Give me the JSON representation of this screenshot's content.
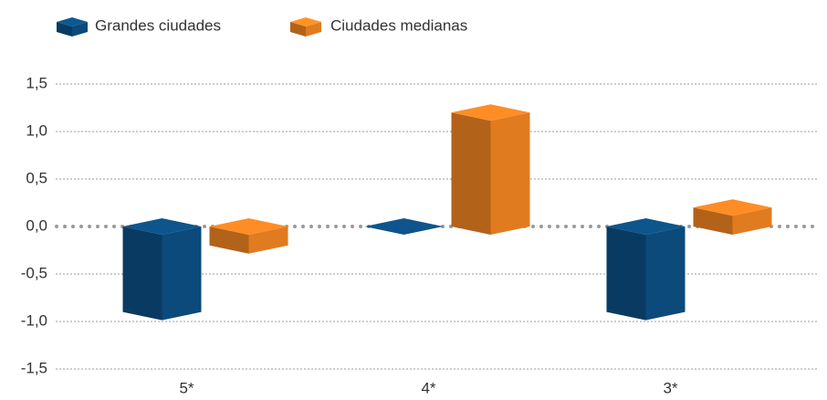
{
  "chart_data": {
    "type": "bar3d",
    "categories": [
      "5*",
      "4*",
      "3*"
    ],
    "series": [
      {
        "name": "Grandes ciudades",
        "color": "#0b4a7a",
        "values": [
          -0.9,
          0,
          -0.9
        ]
      },
      {
        "name": "Ciudades medianas",
        "color": "#e07b20",
        "values": [
          -0.2,
          1.2,
          0.2
        ]
      }
    ],
    "ylim": [
      -1.5,
      1.5
    ],
    "yticks": [
      {
        "value": -1.5,
        "label": "-1,5"
      },
      {
        "value": -1.0,
        "label": "-1,0"
      },
      {
        "value": -0.5,
        "label": "-0,5"
      },
      {
        "value": 0,
        "label": "0,0"
      },
      {
        "value": 0.5,
        "label": "0,5"
      },
      {
        "value": 1.0,
        "label": "1,0"
      },
      {
        "value": 1.5,
        "label": "1,5"
      }
    ],
    "grid": true
  }
}
